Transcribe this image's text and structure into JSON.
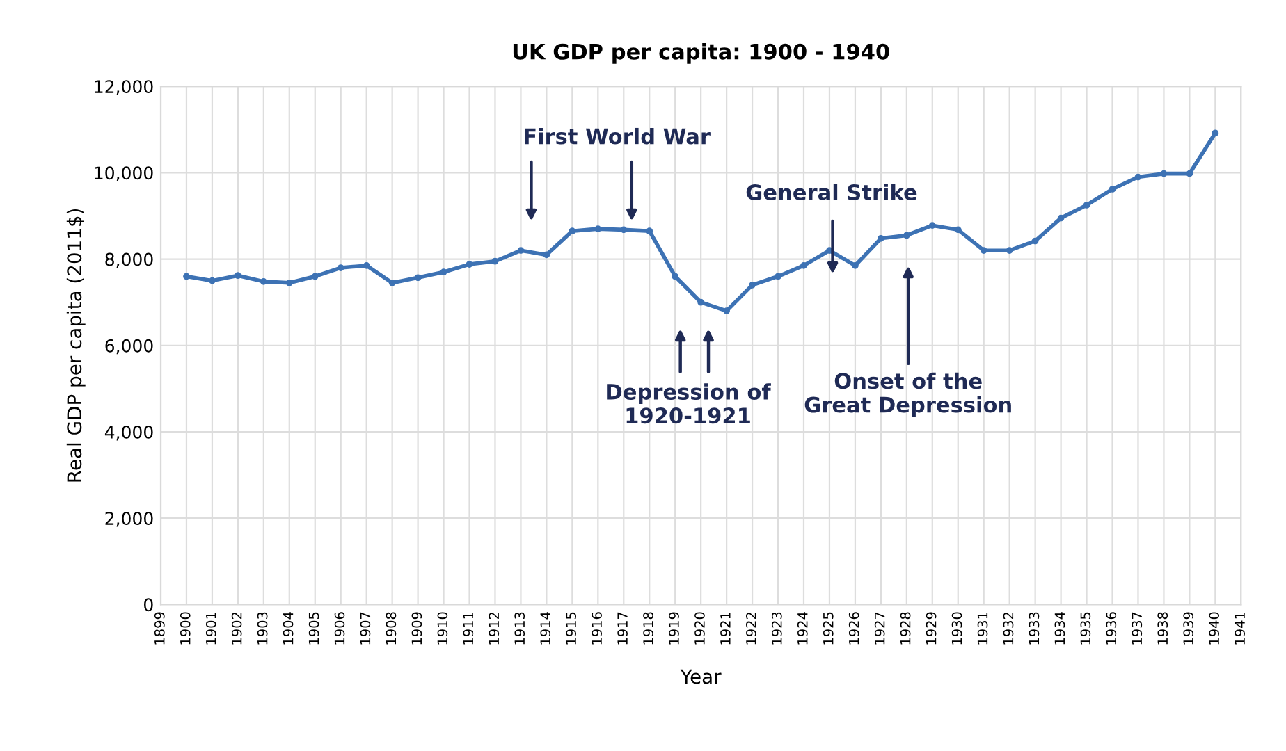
{
  "chart_data": {
    "type": "line",
    "title": "UK GDP per capita: 1900 - 1940",
    "xlabel": "Year",
    "ylabel": "Real GDP per capita (2011$)",
    "x": [
      1900,
      1901,
      1902,
      1903,
      1904,
      1905,
      1906,
      1907,
      1908,
      1909,
      1910,
      1911,
      1912,
      1913,
      1914,
      1915,
      1916,
      1917,
      1918,
      1919,
      1920,
      1921,
      1922,
      1923,
      1924,
      1925,
      1926,
      1927,
      1928,
      1929,
      1930,
      1931,
      1932,
      1933,
      1934,
      1935,
      1936,
      1937,
      1938,
      1939,
      1940
    ],
    "series": [
      {
        "color": "#3d72b4",
        "values": [
          7600,
          7500,
          7620,
          7480,
          7450,
          7600,
          7800,
          7850,
          7450,
          7570,
          7700,
          7880,
          7950,
          8200,
          8100,
          8650,
          8700,
          8680,
          8650,
          7600,
          7000,
          6800,
          7400,
          7600,
          7850,
          8200,
          7850,
          8480,
          8550,
          8780,
          8680,
          8200,
          8200,
          8420,
          8950,
          9250,
          9620,
          9900,
          9980,
          9980,
          10920
        ]
      }
    ],
    "xlim": [
      1899,
      1941
    ],
    "xticks": [
      1899,
      1900,
      1901,
      1902,
      1903,
      1904,
      1905,
      1906,
      1907,
      1908,
      1909,
      1910,
      1911,
      1912,
      1913,
      1914,
      1915,
      1916,
      1917,
      1918,
      1919,
      1920,
      1921,
      1922,
      1923,
      1924,
      1925,
      1926,
      1927,
      1928,
      1929,
      1930,
      1931,
      1932,
      1933,
      1934,
      1935,
      1936,
      1937,
      1938,
      1939,
      1940,
      1941
    ],
    "ylim": [
      0,
      12000
    ],
    "yticks": [
      {
        "value": 0,
        "label": "0"
      },
      {
        "value": 2000,
        "label": "2,000"
      },
      {
        "value": 4000,
        "label": "4,000"
      },
      {
        "value": 6000,
        "label": "6,000"
      },
      {
        "value": 8000,
        "label": "8,000"
      },
      {
        "value": 10000,
        "label": "10,000"
      },
      {
        "value": 12000,
        "label": "12,000"
      }
    ],
    "grid": true,
    "marker": "circle",
    "line_style": "solid",
    "annotations": [
      "First World War",
      "General Strike",
      "Depression of\n1920-1921",
      "Onset of the\nGreat Depression"
    ]
  }
}
